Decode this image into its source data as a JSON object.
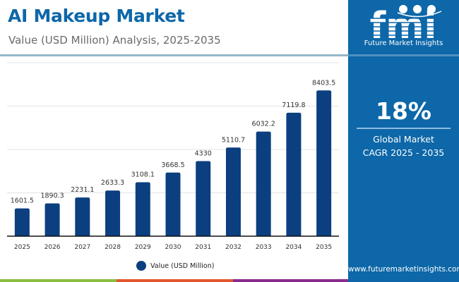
{
  "header": {
    "title": "AI Makeup Market",
    "subtitle": "Value (USD Million) Analysis, 2025-2035"
  },
  "side_panel": {
    "logo_text": "fmi",
    "brand_name": "Future Market Insights",
    "cagr_value": "18%",
    "cagr_label_line1": "Global Market",
    "cagr_label_line2": "CAGR 2025 - 2035",
    "website": "www.futuremarketinsights.com"
  },
  "colors": {
    "bar": "#0b3f80",
    "brand_blue": "#0d67a8",
    "title_blue": "#0d67a8",
    "bottom_bar": [
      "#8bbf3f",
      "#e4572e",
      "#8a2c8f",
      "#0d67a8"
    ]
  },
  "chart_data": {
    "type": "bar",
    "title": "AI Makeup Market",
    "subtitle": "Value (USD Million) Analysis, 2025-2035",
    "xlabel": "",
    "ylabel": "",
    "categories": [
      "2025",
      "2026",
      "2027",
      "2028",
      "2029",
      "2030",
      "2031",
      "2032",
      "2033",
      "2034",
      "2035"
    ],
    "series": [
      {
        "name": "Value (USD Million)",
        "values": [
          1601.5,
          1890.3,
          2231.1,
          2633.3,
          3108.1,
          3668.5,
          4330,
          5110.7,
          6032.2,
          7119.8,
          8403.5
        ],
        "labels": [
          "1601.5",
          "1890.3",
          "2231.1",
          "2633.3",
          "3108.1",
          "3668.5",
          "4330",
          "5110.7",
          "6032.2",
          "7119.8",
          "8403.5"
        ]
      }
    ],
    "ylim": [
      0,
      10000
    ],
    "gridlines": [
      2500,
      5000,
      7500,
      10000
    ],
    "grid": true,
    "y_tick_labels_visible": false,
    "legend": {
      "position": "bottom-center",
      "entries": [
        "Value (USD Million)"
      ]
    }
  }
}
